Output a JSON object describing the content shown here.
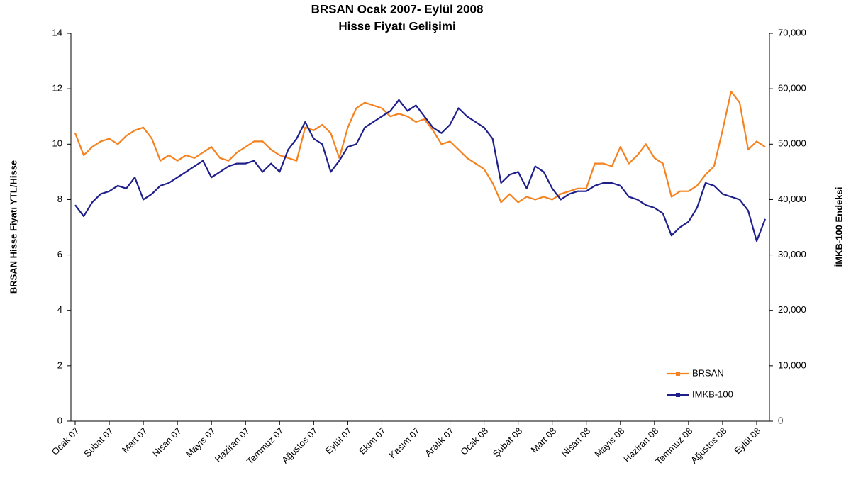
{
  "chart_data": {
    "type": "line",
    "title": "BRSAN Ocak 2007- Eylül 2008",
    "subtitle": "Hisse Fiyatı Gelişimi",
    "y_label": "BRSAN Hisse Fiyatı YTL/Hisse",
    "y2_label": "İMKB-100 Endeksi",
    "categories": [
      "Ocak 07",
      null,
      null,
      null,
      "Şubat 07",
      null,
      null,
      null,
      "Mart 07",
      null,
      null,
      null,
      "Nisan 07",
      null,
      null,
      null,
      "Mayıs 07",
      null,
      null,
      null,
      "Haziran 07",
      null,
      null,
      null,
      "Temmuz 07",
      null,
      null,
      null,
      "Ağustos 07",
      null,
      null,
      null,
      "Eylül 07",
      null,
      null,
      null,
      "Ekim 07",
      null,
      null,
      null,
      "Kasım 07",
      null,
      null,
      null,
      "Aralık 07",
      null,
      null,
      null,
      "Ocak 08",
      null,
      null,
      null,
      "Şubat 08",
      null,
      null,
      null,
      "Mart 08",
      null,
      null,
      null,
      "Nisan 08",
      null,
      null,
      null,
      "Mayıs 08",
      null,
      null,
      null,
      "Haziran 08",
      null,
      null,
      null,
      "Temmuz 08",
      null,
      null,
      null,
      "Ağustos 08",
      null,
      null,
      null,
      "Eylül 08",
      null
    ],
    "series": [
      {
        "name": "BRSAN",
        "color": "#f5821f",
        "axis": "y",
        "values": [
          10.4,
          9.6,
          9.9,
          10.1,
          10.2,
          10.0,
          10.3,
          10.5,
          10.6,
          10.2,
          9.4,
          9.6,
          9.4,
          9.6,
          9.5,
          9.7,
          9.9,
          9.5,
          9.4,
          9.7,
          9.9,
          10.1,
          10.1,
          9.8,
          9.6,
          9.5,
          9.4,
          10.6,
          10.5,
          10.7,
          10.4,
          9.5,
          10.6,
          11.3,
          11.5,
          11.4,
          11.3,
          11.0,
          11.1,
          11.0,
          10.8,
          10.9,
          10.5,
          10.0,
          10.1,
          9.8,
          9.5,
          9.3,
          9.1,
          8.6,
          7.9,
          8.2,
          7.9,
          8.1,
          8.0,
          8.1,
          8.0,
          8.2,
          8.3,
          8.4,
          8.4,
          9.3,
          9.3,
          9.2,
          9.9,
          9.3,
          9.6,
          10.0,
          9.5,
          9.3,
          8.1,
          8.3,
          8.3,
          8.5,
          8.9,
          9.2,
          10.5,
          11.9,
          11.5,
          9.8,
          10.1,
          9.9
        ]
      },
      {
        "name": "IMKB-100",
        "color": "#1f1f8c",
        "axis": "y2",
        "values": [
          39000,
          37000,
          39500,
          41000,
          41500,
          42500,
          42000,
          44000,
          40000,
          41000,
          42500,
          43000,
          44000,
          45000,
          46000,
          47000,
          44000,
          45000,
          46000,
          46500,
          46500,
          47000,
          45000,
          46500,
          45000,
          49000,
          51000,
          54000,
          51000,
          50000,
          45000,
          47000,
          49500,
          50000,
          53000,
          54000,
          55000,
          56000,
          58000,
          56000,
          57000,
          55000,
          53000,
          52000,
          53500,
          56500,
          55000,
          54000,
          53000,
          51000,
          43000,
          44500,
          45000,
          42000,
          46000,
          45000,
          42000,
          40000,
          41000,
          41500,
          41500,
          42500,
          43000,
          43000,
          42500,
          40500,
          40000,
          39000,
          38500,
          37500,
          33500,
          35000,
          36000,
          38500,
          43000,
          42500,
          41000,
          40500,
          40000,
          38000,
          32500,
          36500
        ]
      }
    ],
    "ylim": [
      0,
      14
    ],
    "yticks": [
      0,
      2,
      4,
      6,
      8,
      10,
      12,
      14
    ],
    "y2lim": [
      0,
      70000
    ],
    "y2ticks": [
      0,
      {
        "value": 10000,
        "label": "10,000"
      },
      {
        "value": 20000,
        "label": "20,000"
      },
      {
        "value": 30000,
        "label": "30,000"
      },
      {
        "value": 40000,
        "label": "40,000"
      },
      {
        "value": 50000,
        "label": "50,000"
      },
      {
        "value": 60000,
        "label": "60,000"
      },
      {
        "value": 70000,
        "label": "70,000"
      }
    ],
    "legend": "bottom-right",
    "grid": false
  }
}
